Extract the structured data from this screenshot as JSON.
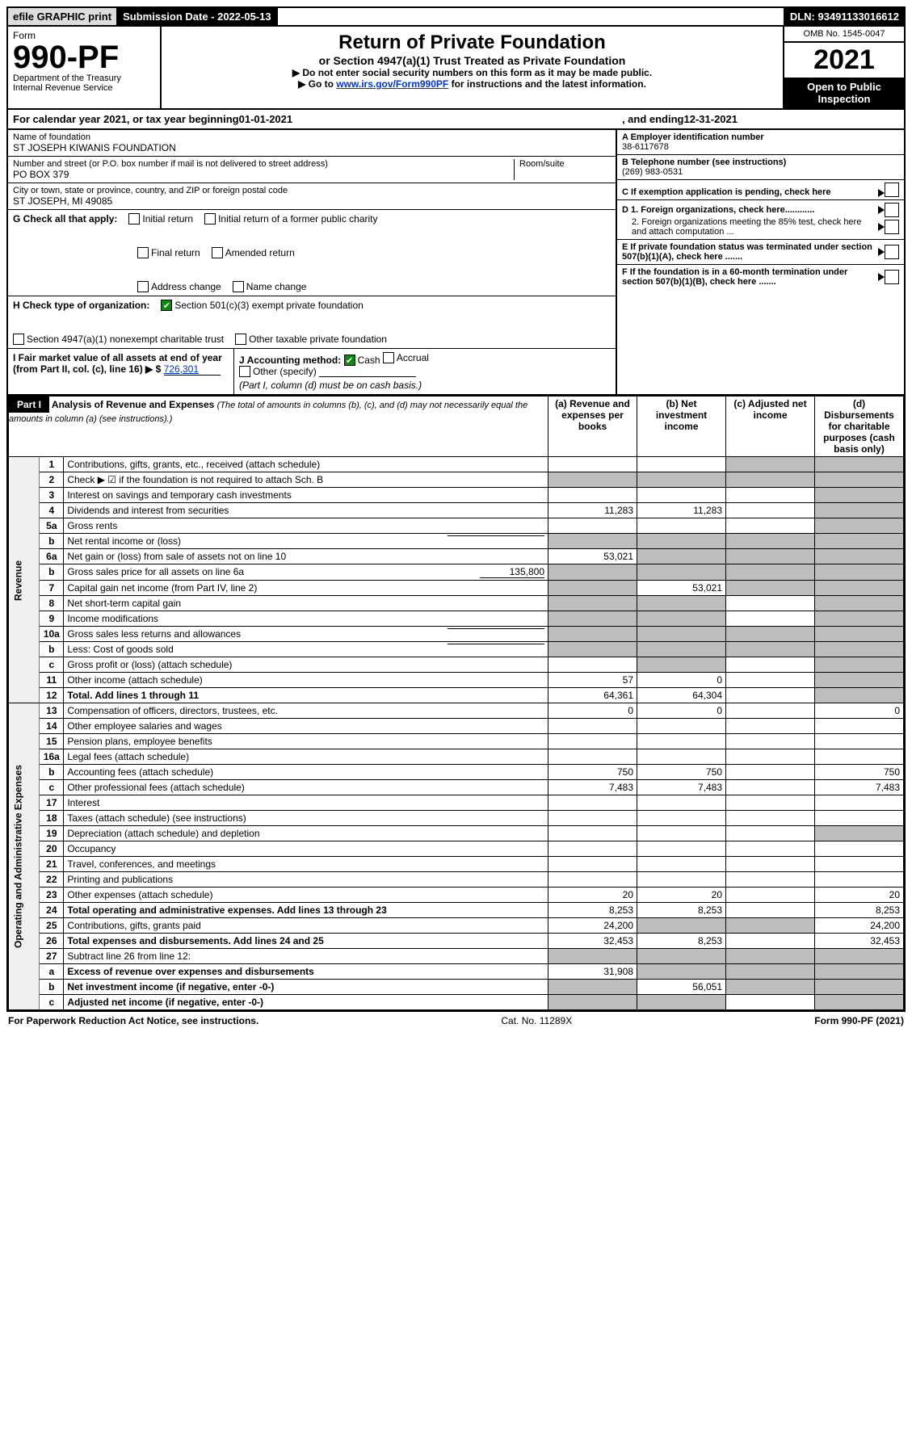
{
  "topbar": {
    "efile": "efile GRAPHIC print",
    "submission_label": "Submission Date - 2022-05-13",
    "dln": "DLN: 93491133016612"
  },
  "header": {
    "form_label": "Form",
    "form_num": "990-PF",
    "dept": "Department of the Treasury\nInternal Revenue Service",
    "title": "Return of Private Foundation",
    "subtitle": "or Section 4947(a)(1) Trust Treated as Private Foundation",
    "instr1": "▶ Do not enter social security numbers on this form as it may be made public.",
    "instr2_pre": "▶ Go to ",
    "instr2_link": "www.irs.gov/Form990PF",
    "instr2_post": " for instructions and the latest information.",
    "omb": "OMB No. 1545-0047",
    "year": "2021",
    "open_public": "Open to Public Inspection"
  },
  "calendar": {
    "pre": "For calendar year 2021, or tax year beginning ",
    "begin": "01-01-2021",
    "mid": " , and ending ",
    "end": "12-31-2021"
  },
  "info": {
    "name_label": "Name of foundation",
    "name": "ST JOSEPH KIWANIS FOUNDATION",
    "addr_label": "Number and street (or P.O. box number if mail is not delivered to street address)",
    "addr": "PO BOX 379",
    "room_label": "Room/suite",
    "city_label": "City or town, state or province, country, and ZIP or foreign postal code",
    "city": "ST JOSEPH, MI  49085",
    "ein_label": "A Employer identification number",
    "ein": "38-6117678",
    "tel_label": "B Telephone number (see instructions)",
    "tel": "(269) 983-0531",
    "c_label": "C  If exemption application is pending, check here",
    "d1": "D 1. Foreign organizations, check here............",
    "d2": "2. Foreign organizations meeting the 85% test, check here and attach computation ...",
    "e": "E  If private foundation status was terminated under section 507(b)(1)(A), check here .......",
    "f": "F  If the foundation is in a 60-month termination under section 507(b)(1)(B), check here .......",
    "g_label": "G Check all that apply:",
    "g_initial": "Initial return",
    "g_initial_former": "Initial return of a former public charity",
    "g_final": "Final return",
    "g_amended": "Amended return",
    "g_address": "Address change",
    "g_name": "Name change",
    "h_label": "H Check type of organization:",
    "h_501c3": "Section 501(c)(3) exempt private foundation",
    "h_4947": "Section 4947(a)(1) nonexempt charitable trust",
    "h_other": "Other taxable private foundation",
    "i_label": "I Fair market value of all assets at end of year (from Part II, col. (c), line 16) ▶ $",
    "i_value": "726,301",
    "j_label": "J Accounting method:",
    "j_cash": "Cash",
    "j_accrual": "Accrual",
    "j_other": "Other (specify)",
    "j_note": "(Part I, column (d) must be on cash basis.)"
  },
  "part1": {
    "header": "Part I",
    "title": "Analysis of Revenue and Expenses ",
    "desc": "(The total of amounts in columns (b), (c), and (d) may not necessarily equal the amounts in column (a) (see instructions).)",
    "col_a": "(a) Revenue and expenses per books",
    "col_b": "(b) Net investment income",
    "col_c": "(c) Adjusted net income",
    "col_d": "(d) Disbursements for charitable purposes (cash basis only)",
    "side_rev": "Revenue",
    "side_exp": "Operating and Administrative Expenses"
  },
  "rows": [
    {
      "n": "1",
      "label": "Contributions, gifts, grants, etc., received (attach schedule)",
      "a": "",
      "b": "",
      "c": "grey",
      "d": "grey"
    },
    {
      "n": "2",
      "label": "Check ▶ ☑ if the foundation is not required to attach Sch. B",
      "dots": true,
      "a": "grey",
      "b": "grey",
      "c": "grey",
      "d": "grey",
      "bold_not": true,
      "checked": true
    },
    {
      "n": "3",
      "label": "Interest on savings and temporary cash investments",
      "a": "",
      "b": "",
      "c": "",
      "d": "grey"
    },
    {
      "n": "4",
      "label": "Dividends and interest from securities",
      "dots": true,
      "a": "11,283",
      "b": "11,283",
      "c": "",
      "d": "grey"
    },
    {
      "n": "5a",
      "label": "Gross rents",
      "dots": true,
      "a": "",
      "b": "",
      "c": "",
      "d": "grey"
    },
    {
      "n": "b",
      "label": "Net rental income or (loss)",
      "underline": true,
      "a": "grey",
      "b": "grey",
      "c": "grey",
      "d": "grey"
    },
    {
      "n": "6a",
      "label": "Net gain or (loss) from sale of assets not on line 10",
      "a": "53,021",
      "b": "grey",
      "c": "grey",
      "d": "grey"
    },
    {
      "n": "b",
      "label": "Gross sales price for all assets on line 6a",
      "underline_val": "135,800",
      "a": "grey",
      "b": "grey",
      "c": "grey",
      "d": "grey"
    },
    {
      "n": "7",
      "label": "Capital gain net income (from Part IV, line 2)",
      "dots": true,
      "a": "grey",
      "b": "53,021",
      "c": "grey",
      "d": "grey"
    },
    {
      "n": "8",
      "label": "Net short-term capital gain",
      "dots": true,
      "a": "grey",
      "b": "grey",
      "c": "",
      "d": "grey"
    },
    {
      "n": "9",
      "label": "Income modifications",
      "dots": true,
      "a": "grey",
      "b": "grey",
      "c": "",
      "d": "grey"
    },
    {
      "n": "10a",
      "label": "Gross sales less returns and allowances",
      "underline": true,
      "a": "grey",
      "b": "grey",
      "c": "grey",
      "d": "grey"
    },
    {
      "n": "b",
      "label": "Less: Cost of goods sold",
      "dots": true,
      "underline": true,
      "a": "grey",
      "b": "grey",
      "c": "grey",
      "d": "grey"
    },
    {
      "n": "c",
      "label": "Gross profit or (loss) (attach schedule)",
      "dots": true,
      "a": "",
      "b": "grey",
      "c": "",
      "d": "grey"
    },
    {
      "n": "11",
      "label": "Other income (attach schedule)",
      "dots": true,
      "a": "57",
      "b": "0",
      "c": "",
      "d": "grey"
    },
    {
      "n": "12",
      "label": "Total. Add lines 1 through 11",
      "dots": true,
      "bold": true,
      "a": "64,361",
      "b": "64,304",
      "c": "",
      "d": "grey"
    },
    {
      "n": "13",
      "label": "Compensation of officers, directors, trustees, etc.",
      "a": "0",
      "b": "0",
      "c": "",
      "d": "0"
    },
    {
      "n": "14",
      "label": "Other employee salaries and wages",
      "dots": true,
      "a": "",
      "b": "",
      "c": "",
      "d": ""
    },
    {
      "n": "15",
      "label": "Pension plans, employee benefits",
      "dots": true,
      "a": "",
      "b": "",
      "c": "",
      "d": ""
    },
    {
      "n": "16a",
      "label": "Legal fees (attach schedule)",
      "dots": true,
      "a": "",
      "b": "",
      "c": "",
      "d": ""
    },
    {
      "n": "b",
      "label": "Accounting fees (attach schedule)",
      "dots": true,
      "a": "750",
      "b": "750",
      "c": "",
      "d": "750"
    },
    {
      "n": "c",
      "label": "Other professional fees (attach schedule)",
      "dots": true,
      "a": "7,483",
      "b": "7,483",
      "c": "",
      "d": "7,483"
    },
    {
      "n": "17",
      "label": "Interest",
      "dots": true,
      "a": "",
      "b": "",
      "c": "",
      "d": ""
    },
    {
      "n": "18",
      "label": "Taxes (attach schedule) (see instructions)",
      "dots": true,
      "a": "",
      "b": "",
      "c": "",
      "d": ""
    },
    {
      "n": "19",
      "label": "Depreciation (attach schedule) and depletion",
      "dots": true,
      "a": "",
      "b": "",
      "c": "",
      "d": "grey"
    },
    {
      "n": "20",
      "label": "Occupancy",
      "dots": true,
      "a": "",
      "b": "",
      "c": "",
      "d": ""
    },
    {
      "n": "21",
      "label": "Travel, conferences, and meetings",
      "dots": true,
      "a": "",
      "b": "",
      "c": "",
      "d": ""
    },
    {
      "n": "22",
      "label": "Printing and publications",
      "dots": true,
      "a": "",
      "b": "",
      "c": "",
      "d": ""
    },
    {
      "n": "23",
      "label": "Other expenses (attach schedule)",
      "dots": true,
      "a": "20",
      "b": "20",
      "c": "",
      "d": "20"
    },
    {
      "n": "24",
      "label": "Total operating and administrative expenses. Add lines 13 through 23",
      "dots": true,
      "bold": true,
      "a": "8,253",
      "b": "8,253",
      "c": "",
      "d": "8,253"
    },
    {
      "n": "25",
      "label": "Contributions, gifts, grants paid",
      "dots": true,
      "a": "24,200",
      "b": "grey",
      "c": "grey",
      "d": "24,200"
    },
    {
      "n": "26",
      "label": "Total expenses and disbursements. Add lines 24 and 25",
      "bold": true,
      "a": "32,453",
      "b": "8,253",
      "c": "",
      "d": "32,453"
    },
    {
      "n": "27",
      "label": "Subtract line 26 from line 12:",
      "a": "grey",
      "b": "grey",
      "c": "grey",
      "d": "grey"
    },
    {
      "n": "a",
      "label": "Excess of revenue over expenses and disbursements",
      "bold": true,
      "a": "31,908",
      "b": "grey",
      "c": "grey",
      "d": "grey"
    },
    {
      "n": "b",
      "label": "Net investment income (if negative, enter -0-)",
      "bold": true,
      "a": "grey",
      "b": "56,051",
      "c": "grey",
      "d": "grey"
    },
    {
      "n": "c",
      "label": "Adjusted net income (if negative, enter -0-)",
      "dots": true,
      "bold": true,
      "a": "grey",
      "b": "grey",
      "c": "",
      "d": "grey"
    }
  ],
  "footer": {
    "left": "For Paperwork Reduction Act Notice, see instructions.",
    "center": "Cat. No. 11289X",
    "right": "Form 990-PF (2021)"
  },
  "colors": {
    "grey": "#bdbdbd",
    "link": "#0033cc",
    "green": "#0b8a0b"
  }
}
